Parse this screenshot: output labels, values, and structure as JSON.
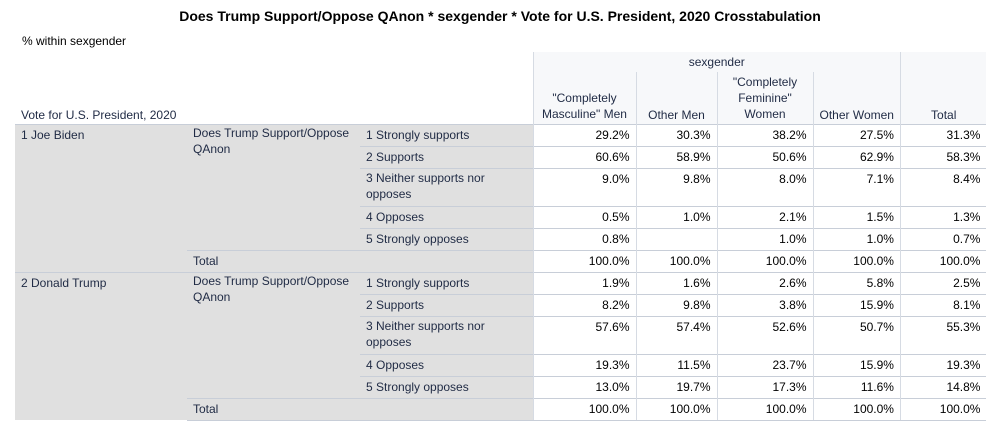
{
  "title": "Does Trump Support/Oppose QAnon * sexgender * Vote for U.S. President, 2020 Crosstabulation",
  "subtitle": "% within sexgender",
  "header": {
    "row_var": "Vote for U.S. President, 2020",
    "col_var": "sexgender",
    "columns": [
      "\"Completely Masculine\" Men",
      "Other Men",
      "\"Completely Feminine\" Women",
      "Other Women",
      "Total"
    ]
  },
  "groups": [
    {
      "vote": "1 Joe Biden",
      "var_label": "Does Trump Support/Oppose QAnon",
      "rows": [
        {
          "label": "1 Strongly supports",
          "values": [
            "29.2%",
            "30.3%",
            "38.2%",
            "27.5%",
            "31.3%"
          ]
        },
        {
          "label": "2 Supports",
          "values": [
            "60.6%",
            "58.9%",
            "50.6%",
            "62.9%",
            "58.3%"
          ]
        },
        {
          "label": "3 Neither supports nor opposes",
          "values": [
            "9.0%",
            "9.8%",
            "8.0%",
            "7.1%",
            "8.4%"
          ]
        },
        {
          "label": "4 Opposes",
          "values": [
            "0.5%",
            "1.0%",
            "2.1%",
            "1.5%",
            "1.3%"
          ]
        },
        {
          "label": "5 Strongly opposes",
          "values": [
            "0.8%",
            "",
            "1.0%",
            "1.0%",
            "0.7%"
          ]
        }
      ],
      "total_label": "Total",
      "total_values": [
        "100.0%",
        "100.0%",
        "100.0%",
        "100.0%",
        "100.0%"
      ]
    },
    {
      "vote": "2 Donald Trump",
      "var_label": "Does Trump Support/Oppose QAnon",
      "rows": [
        {
          "label": "1 Strongly supports",
          "values": [
            "1.9%",
            "1.6%",
            "2.6%",
            "5.8%",
            "2.5%"
          ]
        },
        {
          "label": "2 Supports",
          "values": [
            "8.2%",
            "9.8%",
            "3.8%",
            "15.9%",
            "8.1%"
          ]
        },
        {
          "label": "3 Neither supports nor opposes",
          "values": [
            "57.6%",
            "57.4%",
            "52.6%",
            "50.7%",
            "55.3%"
          ]
        },
        {
          "label": "4 Opposes",
          "values": [
            "19.3%",
            "11.5%",
            "23.7%",
            "15.9%",
            "19.3%"
          ]
        },
        {
          "label": "5 Strongly opposes",
          "values": [
            "13.0%",
            "19.7%",
            "17.3%",
            "11.6%",
            "14.8%"
          ]
        }
      ],
      "total_label": "Total",
      "total_values": [
        "100.0%",
        "100.0%",
        "100.0%",
        "100.0%",
        "100.0%"
      ]
    }
  ]
}
